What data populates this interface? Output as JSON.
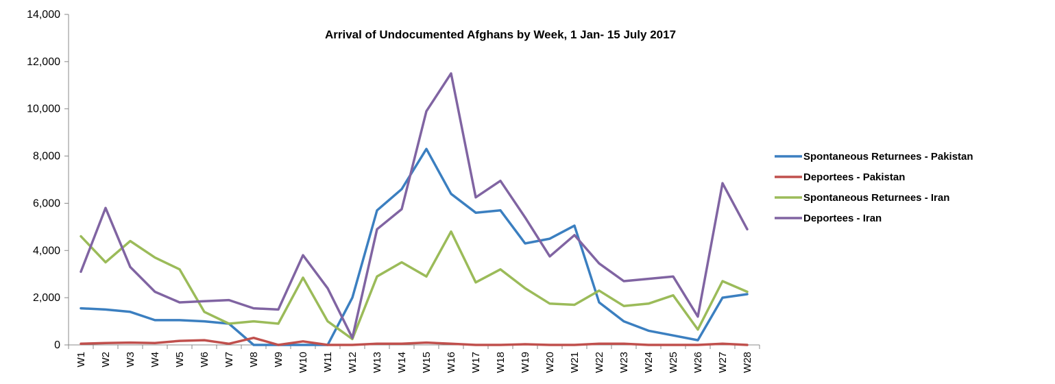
{
  "chart_data": {
    "type": "line",
    "title": "Arrival of Undocumented  Afghans by Week, 1 Jan- 15 July 2017",
    "xlabel": "",
    "ylabel": "",
    "ylim": [
      0,
      14000
    ],
    "y_ticks": [
      0,
      2000,
      4000,
      6000,
      8000,
      10000,
      12000,
      14000
    ],
    "y_tick_labels": [
      "0",
      "2,000",
      "4,000",
      "6,000",
      "8,000",
      "10,000",
      "12,000",
      "14,000"
    ],
    "categories": [
      "W1",
      "W2",
      "W3",
      "W4",
      "W5",
      "W6",
      "W7",
      "W8",
      "W9",
      "W10",
      "W11",
      "W12",
      "W13",
      "W14",
      "W15",
      "W16",
      "W17",
      "W18",
      "W19",
      "W20",
      "W21",
      "W22",
      "W23",
      "W24",
      "W25",
      "W26",
      "W27",
      "W28"
    ],
    "grid": false,
    "legend_position": "right",
    "series": [
      {
        "name": "Spontaneous Returnees - Pakistan",
        "color": "#3b7fc0",
        "values": [
          1550,
          1500,
          1400,
          1050,
          1050,
          1000,
          900,
          0,
          0,
          0,
          0,
          2000,
          5700,
          6600,
          8300,
          6400,
          5600,
          5700,
          4300,
          4500,
          5050,
          1800,
          1000,
          600,
          400,
          200,
          2000,
          2150
        ]
      },
      {
        "name": "Deportees - Pakistan",
        "color": "#c0504d",
        "values": [
          50,
          80,
          100,
          80,
          170,
          200,
          50,
          300,
          0,
          150,
          0,
          0,
          50,
          50,
          100,
          50,
          0,
          0,
          30,
          0,
          0,
          50,
          50,
          0,
          0,
          0,
          50,
          0
        ]
      },
      {
        "name": "Spontaneous Returnees - Iran",
        "color": "#9bbb59",
        "values": [
          4600,
          3500,
          4400,
          3700,
          3200,
          1400,
          900,
          1000,
          900,
          2850,
          1000,
          250,
          2900,
          3500,
          2900,
          4800,
          2650,
          3200,
          2400,
          1750,
          1700,
          2300,
          1650,
          1750,
          2100,
          650,
          2700,
          2250
        ]
      },
      {
        "name": "Deportees - Iran",
        "color": "#8064a2",
        "values": [
          3100,
          5800,
          3300,
          2250,
          1800,
          1850,
          1900,
          1550,
          1500,
          3800,
          2400,
          300,
          4900,
          5750,
          9900,
          11500,
          6250,
          6950,
          5400,
          3750,
          4650,
          3450,
          2700,
          2800,
          2900,
          1200,
          6850,
          4900
        ]
      }
    ]
  }
}
